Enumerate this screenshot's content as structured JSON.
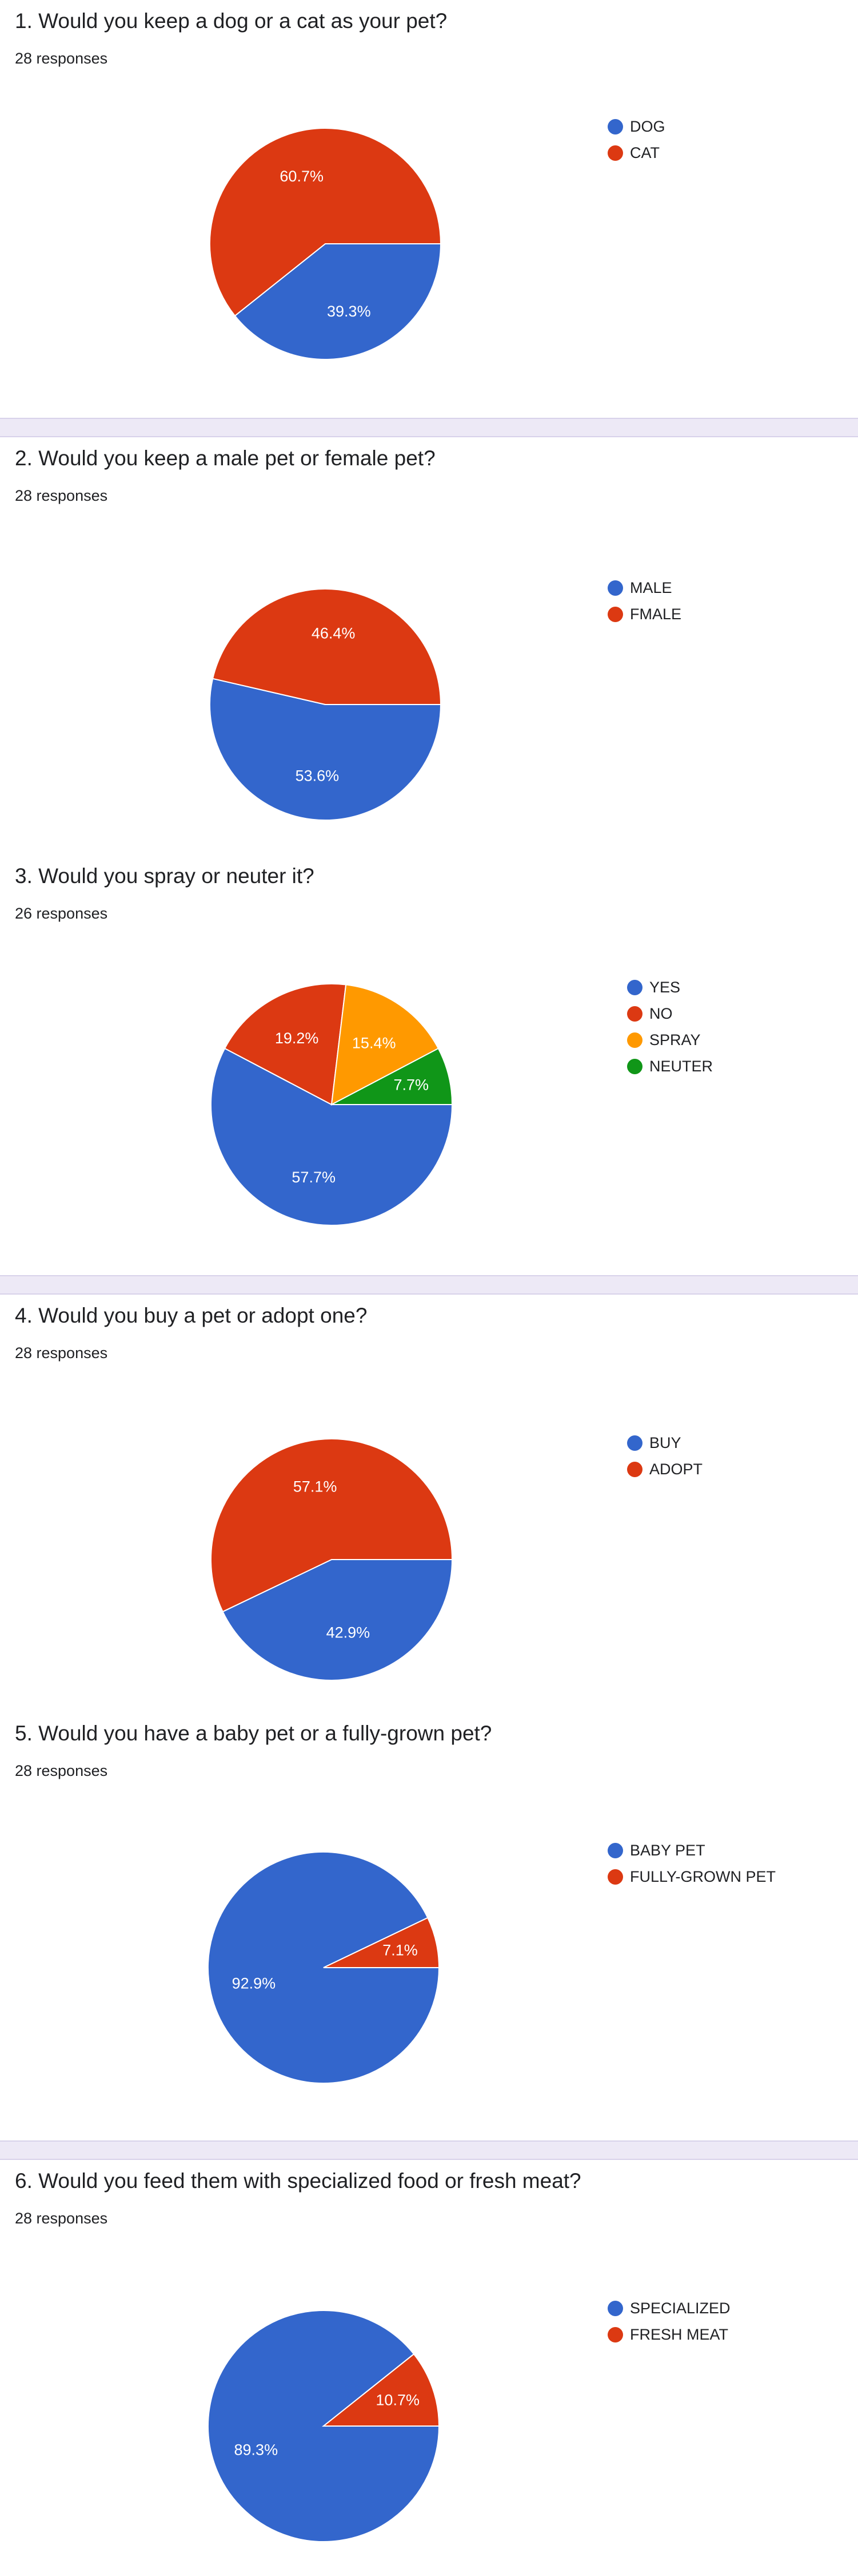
{
  "chart_data": [
    {
      "type": "pie",
      "title": "1. Would you keep a dog or a cat as your pet?",
      "responses": "28 responses",
      "slices": [
        {
          "label": "DOG",
          "value": 39.3,
          "display": "39.3%",
          "color": "#3366cc"
        },
        {
          "label": "CAT",
          "value": 60.7,
          "display": "60.7%",
          "color": "#dc3912"
        }
      ]
    },
    {
      "type": "pie",
      "title": "2. Would you keep a male pet or female pet?",
      "responses": "28 responses",
      "slices": [
        {
          "label": "MALE",
          "value": 53.6,
          "display": "53.6%",
          "color": "#3366cc"
        },
        {
          "label": "FMALE",
          "value": 46.4,
          "display": "46.4%",
          "color": "#dc3912"
        }
      ]
    },
    {
      "type": "pie",
      "title": "3. Would you spray or neuter it?",
      "responses": "26 responses",
      "slices": [
        {
          "label": "YES",
          "value": 57.7,
          "display": "57.7%",
          "color": "#3366cc"
        },
        {
          "label": "NO",
          "value": 19.2,
          "display": "19.2%",
          "color": "#dc3912"
        },
        {
          "label": "SPRAY",
          "value": 15.4,
          "display": "15.4%",
          "color": "#ff9900"
        },
        {
          "label": "NEUTER",
          "value": 7.7,
          "display": "7.7%",
          "color": "#109618"
        }
      ]
    },
    {
      "type": "pie",
      "title": "4. Would you buy a pet or adopt one?",
      "responses": "28 responses",
      "slices": [
        {
          "label": "BUY",
          "value": 42.9,
          "display": "42.9%",
          "color": "#3366cc"
        },
        {
          "label": "ADOPT",
          "value": 57.1,
          "display": "57.1%",
          "color": "#dc3912"
        }
      ]
    },
    {
      "type": "pie",
      "title": "5. Would you have a baby pet or a fully-grown pet?",
      "responses": "28 responses",
      "slices": [
        {
          "label": "BABY PET",
          "value": 92.9,
          "display": "92.9%",
          "color": "#3366cc"
        },
        {
          "label": "FULLY-GROWN PET",
          "value": 7.1,
          "display": "7.1%",
          "color": "#dc3912"
        }
      ]
    },
    {
      "type": "pie",
      "title": "6. Would you feed them with specialized food or fresh meat?",
      "responses": "28 responses",
      "slices": [
        {
          "label": "SPECIALIZED",
          "value": 89.3,
          "display": "89.3%",
          "color": "#3366cc"
        },
        {
          "label": "FRESH MEAT",
          "value": 10.7,
          "display": "10.7%",
          "color": "#dc3912"
        }
      ]
    }
  ]
}
